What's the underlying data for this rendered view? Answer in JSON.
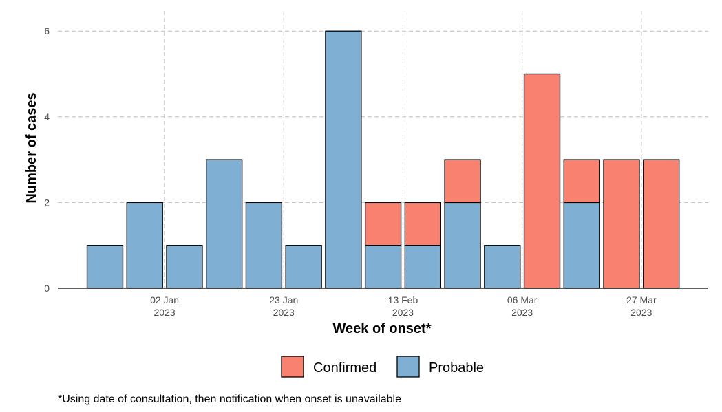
{
  "chart_data": {
    "type": "bar",
    "stacked": true,
    "xlabel": "Week of onset*",
    "ylabel": "Number of cases",
    "ylim": [
      0,
      6.4
    ],
    "yticks": [
      0,
      2,
      4,
      6
    ],
    "week_index_ticks": [
      1.5,
      4.5,
      7.5,
      10.5,
      13.5
    ],
    "xtick_labels": [
      {
        "line1": "02 Jan",
        "line2": "2023"
      },
      {
        "line1": "23 Jan",
        "line2": "2023"
      },
      {
        "line1": "13 Feb",
        "line2": "2023"
      },
      {
        "line1": "06 Mar",
        "line2": "2023"
      },
      {
        "line1": "27 Mar",
        "line2": "2023"
      }
    ],
    "weeks": [
      "19 Dec 2022",
      "26 Dec 2022",
      "02 Jan 2023",
      "09 Jan 2023",
      "16 Jan 2023",
      "23 Jan 2023",
      "30 Jan 2023",
      "06 Feb 2023",
      "13 Feb 2023",
      "20 Feb 2023",
      "27 Feb 2023",
      "06 Mar 2023",
      "13 Mar 2023",
      "20 Mar 2023",
      "27 Mar 2023"
    ],
    "series": [
      {
        "name": "Probable",
        "color": "#7fb0d3",
        "values": [
          1,
          2,
          1,
          3,
          2,
          1,
          6,
          1,
          1,
          2,
          1,
          0,
          2,
          0,
          0
        ]
      },
      {
        "name": "Confirmed",
        "color": "#f8816f",
        "values": [
          0,
          0,
          0,
          0,
          0,
          0,
          0,
          1,
          1,
          1,
          0,
          5,
          1,
          3,
          3
        ]
      }
    ],
    "legend": {
      "position": "bottom",
      "items": [
        {
          "label": "Confirmed",
          "color": "#f8816f"
        },
        {
          "label": "Probable",
          "color": "#7fb0d3"
        }
      ]
    },
    "grid": true
  },
  "footnote": "*Using date of consultation, then notification when onset is unavailable"
}
